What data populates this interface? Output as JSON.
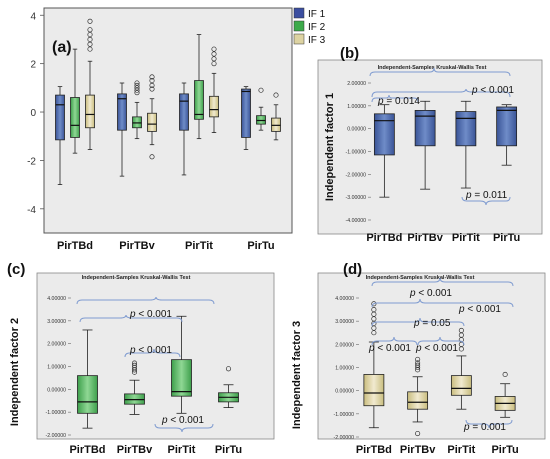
{
  "chart_data": [
    {
      "panel_label": "(a)",
      "type": "boxplot",
      "categories": [
        "PirTBd",
        "PirTBv",
        "PirTit",
        "PirTu"
      ],
      "ylim": [
        -5,
        4.3
      ],
      "yticks": [
        -4,
        -2,
        0,
        2,
        4
      ],
      "legend": {
        "placement": "top-right",
        "entries": [
          "IF 1",
          "IF 2",
          "IF 3"
        ]
      },
      "series": [
        {
          "name": "IF 1",
          "color": "#3b4ea0",
          "boxes": [
            {
              "min": -3.0,
              "q1": -1.15,
              "median": 0.3,
              "q3": 0.7,
              "max": 1.05,
              "outliers": []
            },
            {
              "min": -2.65,
              "q1": -0.75,
              "median": 0.55,
              "q3": 0.75,
              "max": 1.2,
              "outliers": []
            },
            {
              "min": -2.6,
              "q1": -0.75,
              "median": 0.45,
              "q3": 0.75,
              "max": 1.2,
              "outliers": []
            },
            {
              "min": -1.55,
              "q1": -1.05,
              "median": 0.85,
              "q3": 0.95,
              "max": 1.05,
              "outliers": []
            }
          ]
        },
        {
          "name": "IF 2",
          "color": "#3caa4a",
          "boxes": [
            {
              "min": -1.7,
              "q1": -1.05,
              "median": -0.55,
              "q3": 0.6,
              "max": 2.6,
              "outliers": []
            },
            {
              "min": -1.1,
              "q1": -0.65,
              "median": -0.45,
              "q3": -0.2,
              "max": 0.4,
              "outliers": [
                0.8,
                0.9,
                1.0,
                1.1,
                1.2
              ]
            },
            {
              "min": -1.1,
              "q1": -0.3,
              "median": -0.1,
              "q3": 1.3,
              "max": 3.2,
              "outliers": []
            },
            {
              "min": -0.75,
              "q1": -0.5,
              "median": -0.35,
              "q3": -0.15,
              "max": 0.2,
              "outliers": [
                0.9
              ]
            }
          ]
        },
        {
          "name": "IF 3",
          "color": "#ddd3a2",
          "boxes": [
            {
              "min": -1.55,
              "q1": -0.65,
              "median": -0.1,
              "q3": 0.7,
              "max": 2.1,
              "outliers": [
                2.6,
                2.8,
                3.0,
                3.2,
                3.4,
                3.75
              ]
            },
            {
              "min": -1.35,
              "q1": -0.8,
              "median": -0.5,
              "q3": -0.05,
              "max": 0.55,
              "outliers": [
                0.95,
                1.1,
                1.3,
                1.45,
                -1.85
              ]
            },
            {
              "min": -0.85,
              "q1": -0.2,
              "median": 0.1,
              "q3": 0.65,
              "max": 1.6,
              "outliers": [
                2.0,
                2.2,
                2.4,
                2.6
              ]
            },
            {
              "min": -1.15,
              "q1": -0.8,
              "median": -0.55,
              "q3": -0.25,
              "max": 0.3,
              "outliers": [
                0.7
              ]
            }
          ]
        }
      ]
    },
    {
      "panel_label": "(b)",
      "type": "boxplot",
      "title": "Independent-Samples Kruskal-Wallis Test",
      "ylabel": "Independent factor 1",
      "categories": [
        "PirTBd",
        "PirTBv",
        "PirTit",
        "PirTu"
      ],
      "ylim": [
        -4,
        2
      ],
      "ytick_labels": [
        "2.00000",
        "1.00000",
        "0.00000",
        "-1.00000",
        "-2.00000",
        "-3.00000",
        "-4.00000"
      ],
      "box_color": "#4a67a6",
      "boxes": [
        {
          "min": -3.0,
          "q1": -1.15,
          "median": 0.35,
          "q3": 0.65,
          "max": 1.05,
          "outliers": []
        },
        {
          "min": -2.65,
          "q1": -0.75,
          "median": 0.55,
          "q3": 0.8,
          "max": 1.2,
          "outliers": []
        },
        {
          "min": -2.6,
          "q1": -0.75,
          "median": 0.45,
          "q3": 0.75,
          "max": 1.2,
          "outliers": []
        },
        {
          "min": -1.6,
          "q1": -0.75,
          "median": 0.8,
          "q3": 0.95,
          "max": 1.05,
          "outliers": []
        }
      ],
      "annotations": [
        "p = 0.014",
        "p < 0.001",
        "p = 0.011"
      ]
    },
    {
      "panel_label": "(c)",
      "type": "boxplot",
      "title": "Independent-Samples Kruskal-Wallis Test",
      "ylabel": "Independent factor 2",
      "categories": [
        "PirTBd",
        "PirTBv",
        "PirTit",
        "PirTu"
      ],
      "ylim": [
        -2,
        4
      ],
      "ytick_labels": [
        "4.00000",
        "3.00000",
        "2.00000",
        "1.00000",
        "0.00000",
        "-1.00000",
        "-2.00000"
      ],
      "box_color": "#4fb45c",
      "boxes": [
        {
          "min": -1.7,
          "q1": -1.05,
          "median": -0.55,
          "q3": 0.6,
          "max": 2.6,
          "outliers": []
        },
        {
          "min": -1.1,
          "q1": -0.65,
          "median": -0.45,
          "q3": -0.2,
          "max": 0.4,
          "outliers": [
            0.75,
            0.85,
            0.95,
            1.05,
            1.15
          ]
        },
        {
          "min": -1.05,
          "q1": -0.3,
          "median": -0.1,
          "q3": 1.3,
          "max": 3.2,
          "outliers": []
        },
        {
          "min": -0.8,
          "q1": -0.55,
          "median": -0.35,
          "q3": -0.15,
          "max": 0.2,
          "outliers": [
            0.9
          ]
        }
      ],
      "annotations": [
        "p < 0.001",
        "p < 0.001",
        "p < 0.001"
      ]
    },
    {
      "panel_label": "(d)",
      "type": "boxplot",
      "title": "Independent-Samples Kruskal-Wallis Test",
      "ylabel": "Independent factor 3",
      "categories": [
        "PirTBd",
        "PirTBv",
        "PirTit",
        "PirTu"
      ],
      "ylim": [
        -2,
        4
      ],
      "ytick_labels": [
        "4.00000",
        "3.00000",
        "2.00000",
        "1.00000",
        "0.00000",
        "-1.00000",
        "-2.00000"
      ],
      "box_color": "#d8cd92",
      "boxes": [
        {
          "min": -1.6,
          "q1": -0.65,
          "median": -0.1,
          "q3": 0.7,
          "max": 2.1,
          "outliers": [
            2.5,
            2.7,
            2.9,
            3.1,
            3.3,
            3.5,
            3.75
          ]
        },
        {
          "min": -1.35,
          "q1": -0.8,
          "median": -0.5,
          "q3": -0.05,
          "max": 0.6,
          "outliers": [
            0.9,
            1.0,
            1.1,
            1.2,
            1.35,
            -1.85
          ]
        },
        {
          "min": -0.8,
          "q1": -0.2,
          "median": 0.1,
          "q3": 0.65,
          "max": 1.5,
          "outliers": [
            1.8,
            2.0,
            2.2,
            2.4,
            2.6
          ]
        },
        {
          "min": -1.15,
          "q1": -0.85,
          "median": -0.55,
          "q3": -0.25,
          "max": 0.3,
          "outliers": [
            0.7
          ]
        }
      ],
      "annotations": [
        "p < 0.001",
        "p = 0.05",
        "p < 0.001",
        "p < 0.001",
        "p < 0.001",
        "p = 0.001"
      ]
    }
  ]
}
